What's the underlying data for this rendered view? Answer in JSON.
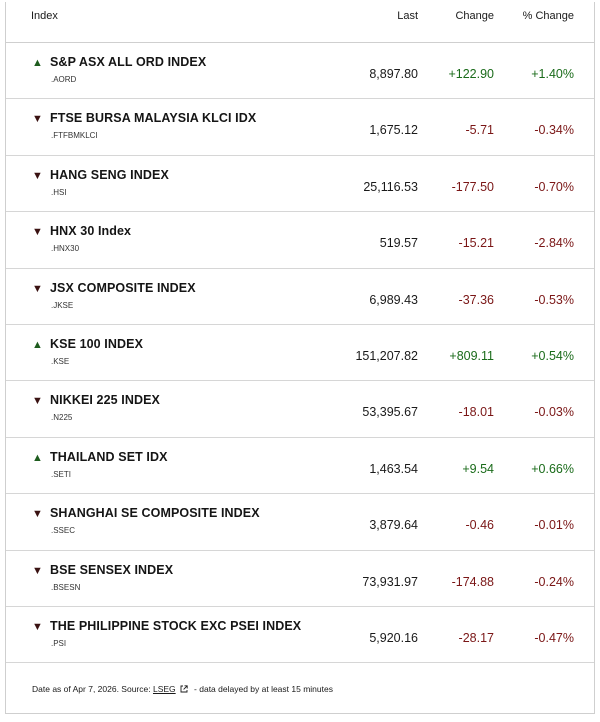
{
  "header": {
    "index_label": "Index",
    "last_label": "Last",
    "change_label": "Change",
    "pct_label": "% Change"
  },
  "colors": {
    "positive": "#1a6b1a",
    "negative": "#7a1616"
  },
  "rows": [
    {
      "direction": "up",
      "arrow_icon": "triangle-up-icon",
      "name": "S&P ASX ALL ORD INDEX",
      "ric": ".AORD",
      "last": "8,897.80",
      "change": "+122.90",
      "pct": "+1.40%"
    },
    {
      "direction": "down",
      "arrow_icon": "triangle-down-icon",
      "name": "FTSE BURSA MALAYSIA KLCI IDX",
      "ric": ".FTFBMKLCI",
      "last": "1,675.12",
      "change": "-5.71",
      "pct": "-0.34%"
    },
    {
      "direction": "down",
      "arrow_icon": "triangle-down-icon",
      "name": "HANG SENG INDEX",
      "ric": ".HSI",
      "last": "25,116.53",
      "change": "-177.50",
      "pct": "-0.70%"
    },
    {
      "direction": "down",
      "arrow_icon": "triangle-down-icon",
      "name": "HNX 30 Index",
      "ric": ".HNX30",
      "last": "519.57",
      "change": "-15.21",
      "pct": "-2.84%"
    },
    {
      "direction": "down",
      "arrow_icon": "triangle-down-icon",
      "name": "JSX COMPOSITE INDEX",
      "ric": ".JKSE",
      "last": "6,989.43",
      "change": "-37.36",
      "pct": "-0.53%"
    },
    {
      "direction": "up",
      "arrow_icon": "triangle-up-icon",
      "name": "KSE 100 INDEX",
      "ric": ".KSE",
      "last": "151,207.82",
      "change": "+809.11",
      "pct": "+0.54%"
    },
    {
      "direction": "down",
      "arrow_icon": "triangle-down-icon",
      "name": "NIKKEI 225 INDEX",
      "ric": ".N225",
      "last": "53,395.67",
      "change": "-18.01",
      "pct": "-0.03%"
    },
    {
      "direction": "up",
      "arrow_icon": "triangle-up-icon",
      "name": "THAILAND SET IDX",
      "ric": ".SETI",
      "last": "1,463.54",
      "change": "+9.54",
      "pct": "+0.66%"
    },
    {
      "direction": "down",
      "arrow_icon": "triangle-down-icon",
      "name": "SHANGHAI SE COMPOSITE INDEX",
      "ric": ".SSEC",
      "last": "3,879.64",
      "change": "-0.46",
      "pct": "-0.01%"
    },
    {
      "direction": "down",
      "arrow_icon": "triangle-down-icon",
      "name": "BSE SENSEX INDEX",
      "ric": ".BSESN",
      "last": "73,931.97",
      "change": "-174.88",
      "pct": "-0.24%"
    },
    {
      "direction": "down",
      "arrow_icon": "triangle-down-icon",
      "name": "THE PHILIPPINE STOCK EXC PSEI INDEX",
      "ric": ".PSI",
      "last": "5,920.16",
      "change": "-28.17",
      "pct": "-0.47%"
    }
  ],
  "footer": {
    "prefix": "Date as of Apr 7, 2026. Source:",
    "source_label": "LSEG",
    "source_icon": "external-link-icon",
    "suffix": "- data delayed by at least 15 minutes"
  }
}
